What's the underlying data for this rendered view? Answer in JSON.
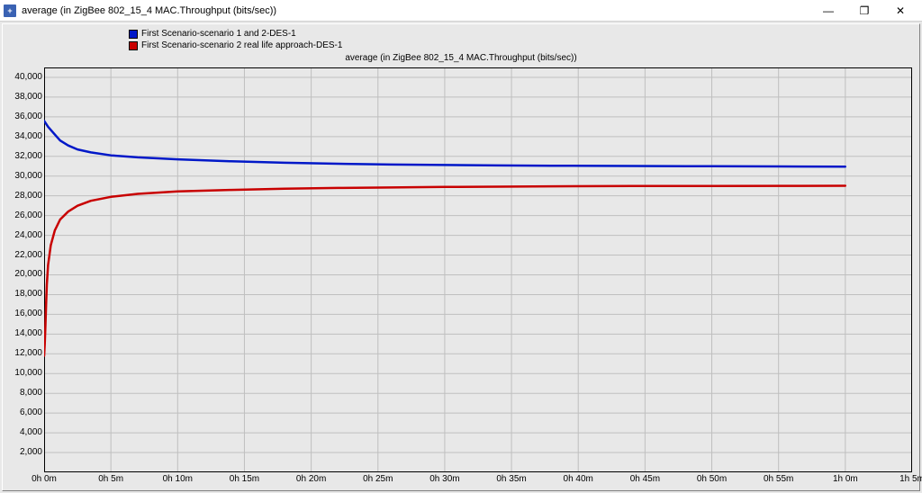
{
  "window": {
    "title": "average (in ZigBee 802_15_4 MAC.Throughput (bits/sec))",
    "icon_label": "+",
    "minimize": "—",
    "maximize": "❐",
    "close": "✕"
  },
  "chart": {
    "type": "line",
    "subtitle": "average (in ZigBee 802_15_4 MAC.Throughput (bits/sec))",
    "background_color": "#e8e8e8",
    "plot_border_color": "#000000",
    "grid_color": "#bfbfbf",
    "tick_fontsize": 10,
    "ylim": [
      0,
      41000
    ],
    "ytick_step": 2000,
    "ylabels": [
      "2,000",
      "4,000",
      "6,000",
      "8,000",
      "10,000",
      "12,000",
      "14,000",
      "16,000",
      "18,000",
      "20,000",
      "22,000",
      "24,000",
      "26,000",
      "28,000",
      "30,000",
      "32,000",
      "34,000",
      "36,000",
      "38,000",
      "40,000"
    ],
    "xlim_min": 0,
    "xlim_max": 65,
    "xtick_step": 5,
    "xlabels": [
      "0h 0m",
      "0h 5m",
      "0h 10m",
      "0h 15m",
      "0h 20m",
      "0h 25m",
      "0h 30m",
      "0h 35m",
      "0h 40m",
      "0h 45m",
      "0h 50m",
      "0h 55m",
      "1h 0m",
      "1h 5m"
    ],
    "line_width": 2.5,
    "legend": [
      {
        "label": "First Scenario-scenario 1 and 2-DES-1",
        "color": "#0018c8"
      },
      {
        "label": "First Scenario-scenario 2 real life approach-DES-1",
        "color": "#c80000"
      }
    ],
    "series": [
      {
        "name": "s1",
        "color": "#0018c8",
        "points": [
          [
            0,
            35600
          ],
          [
            0.3,
            35000
          ],
          [
            0.8,
            34200
          ],
          [
            1.2,
            33600
          ],
          [
            1.8,
            33100
          ],
          [
            2.5,
            32700
          ],
          [
            3.5,
            32400
          ],
          [
            5,
            32100
          ],
          [
            7,
            31900
          ],
          [
            10,
            31700
          ],
          [
            14,
            31500
          ],
          [
            18,
            31350
          ],
          [
            22,
            31250
          ],
          [
            26,
            31170
          ],
          [
            30,
            31120
          ],
          [
            34,
            31080
          ],
          [
            38,
            31050
          ],
          [
            44,
            31020
          ],
          [
            50,
            31000
          ],
          [
            55,
            30980
          ],
          [
            60,
            30960
          ]
        ]
      },
      {
        "name": "s2",
        "color": "#c80000",
        "points": [
          [
            0,
            11800
          ],
          [
            0.05,
            13000
          ],
          [
            0.1,
            15000
          ],
          [
            0.15,
            17000
          ],
          [
            0.2,
            19000
          ],
          [
            0.3,
            21000
          ],
          [
            0.5,
            23000
          ],
          [
            0.8,
            24500
          ],
          [
            1.2,
            25600
          ],
          [
            1.8,
            26400
          ],
          [
            2.5,
            27000
          ],
          [
            3.5,
            27500
          ],
          [
            5,
            27900
          ],
          [
            7,
            28200
          ],
          [
            10,
            28450
          ],
          [
            14,
            28600
          ],
          [
            18,
            28720
          ],
          [
            22,
            28800
          ],
          [
            26,
            28850
          ],
          [
            30,
            28900
          ],
          [
            34,
            28930
          ],
          [
            38,
            28960
          ],
          [
            44,
            28990
          ],
          [
            50,
            29000
          ],
          [
            55,
            29010
          ],
          [
            60,
            29020
          ]
        ]
      }
    ]
  }
}
